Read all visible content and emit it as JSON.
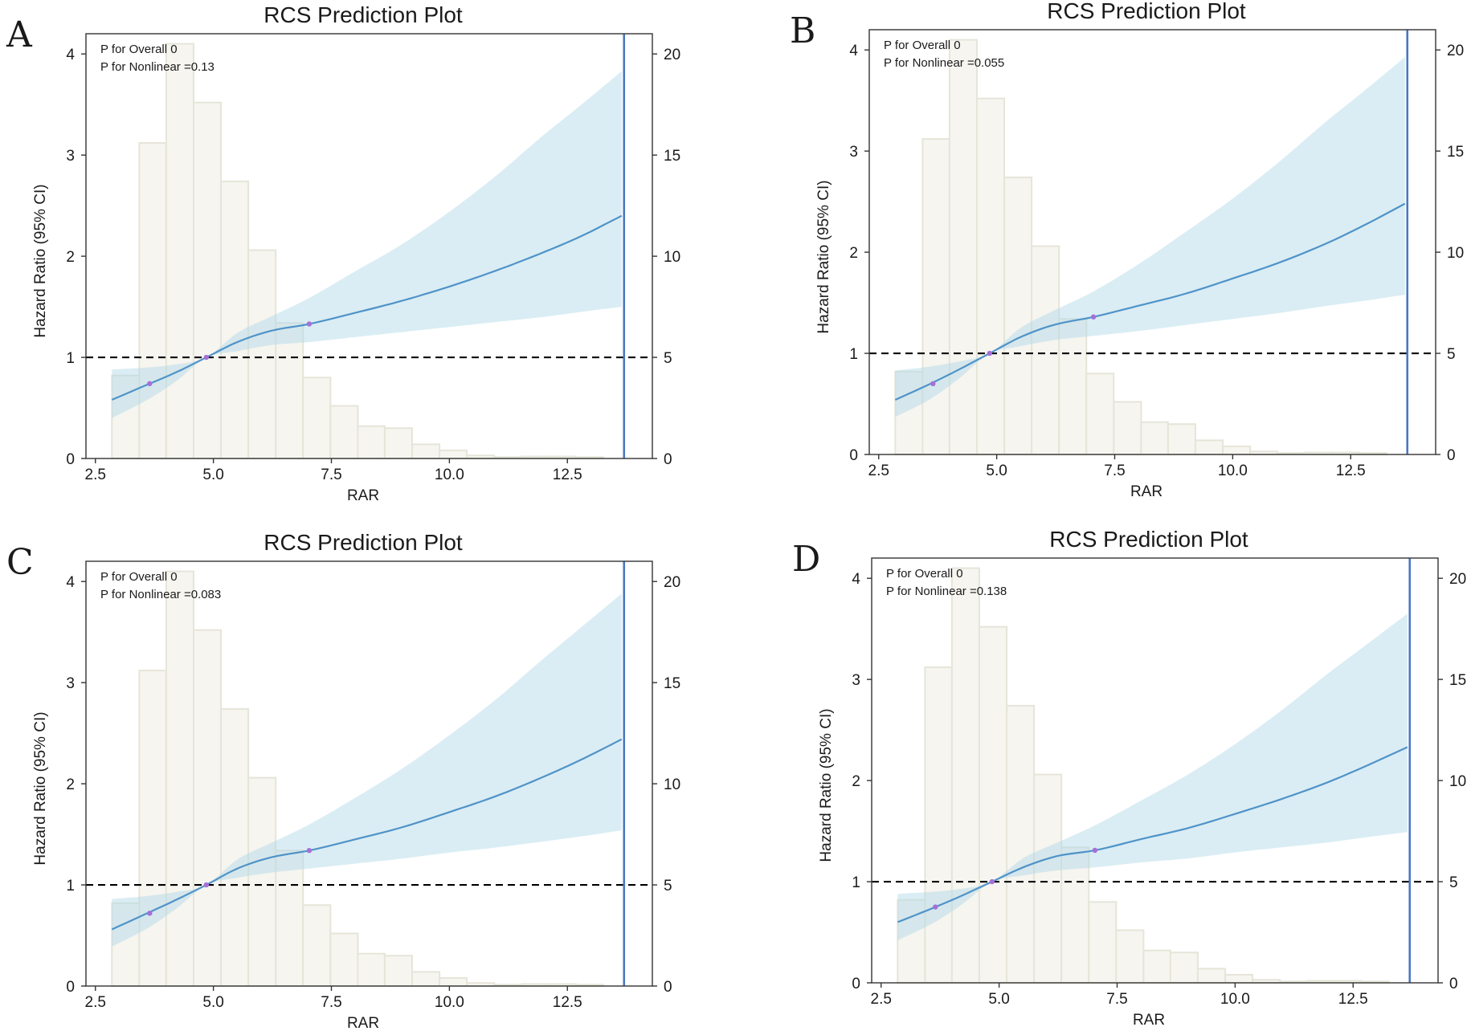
{
  "figure": {
    "colors": {
      "hist_fill": "#f6f5f0",
      "hist_stroke": "#e6e5d9",
      "ci_fill": "#add8e6",
      "curve": "#4f93c8",
      "knot": "#a66fd8",
      "ref_line": "#000000",
      "cutoff_line": "#4a78c2",
      "axis": "#333333"
    }
  },
  "chart_data": [
    {
      "panel_label": "A",
      "type": "line",
      "title": "RCS Prediction Plot",
      "xlabel": "RAR",
      "ylabel": "Hazard Ratio (95% CI)",
      "xlim": [
        2.3,
        14.3
      ],
      "ylim": [
        0,
        4.2
      ],
      "y2lim": [
        0,
        21
      ],
      "xticks": [
        2.5,
        5.0,
        7.5,
        10.0,
        12.5
      ],
      "xtick_labels": [
        "2.5",
        "5.0",
        "7.5",
        "10.0",
        "12.5"
      ],
      "yticks": [
        0,
        1,
        2,
        3,
        4
      ],
      "ytick_labels": [
        "0",
        "1",
        "2",
        "3",
        "4"
      ],
      "y2ticks": [
        0,
        5,
        10,
        15,
        20
      ],
      "y2tick_labels": [
        "0",
        "5",
        "10",
        "15",
        "20"
      ],
      "annotations": [
        "P for Overall 0",
        "P for Nonlinear =0.13"
      ],
      "reference_hr": 1,
      "cutoff_x": 13.7,
      "histogram": {
        "bin_edges": [
          2.85,
          3.43,
          4.0,
          4.58,
          5.16,
          5.74,
          6.32,
          6.9,
          7.48,
          8.06,
          8.63,
          9.21,
          9.79,
          10.37,
          10.95,
          11.53,
          12.11,
          12.68,
          13.26
        ],
        "counts": [
          4.1,
          15.6,
          20.5,
          17.6,
          13.7,
          10.3,
          6.7,
          4.0,
          2.6,
          1.6,
          1.5,
          0.7,
          0.4,
          0.15,
          0.07,
          0.1,
          0.1,
          0.07
        ]
      },
      "series": [
        {
          "name": "HR",
          "x": [
            2.85,
            3.6,
            4.2,
            4.85,
            5.5,
            6.2,
            7.03,
            8.0,
            9.0,
            10.0,
            11.0,
            12.0,
            12.8,
            13.65
          ],
          "y": [
            0.58,
            0.73,
            0.85,
            1.0,
            1.15,
            1.26,
            1.33,
            1.44,
            1.56,
            1.7,
            1.86,
            2.04,
            2.2,
            2.4
          ]
        },
        {
          "name": "CI upper",
          "x": [
            2.85,
            3.6,
            4.2,
            4.85,
            5.5,
            6.2,
            7.0,
            8.0,
            9.0,
            10.0,
            11.0,
            12.0,
            12.8,
            13.65
          ],
          "y": [
            0.88,
            0.9,
            0.93,
            1.0,
            1.24,
            1.4,
            1.58,
            1.85,
            2.12,
            2.44,
            2.8,
            3.2,
            3.5,
            3.83
          ]
        },
        {
          "name": "CI lower",
          "x": [
            2.85,
            3.6,
            4.2,
            4.85,
            5.5,
            6.2,
            7.0,
            8.0,
            9.0,
            10.0,
            11.0,
            12.0,
            12.8,
            13.65
          ],
          "y": [
            0.4,
            0.58,
            0.76,
            1.0,
            1.06,
            1.12,
            1.15,
            1.2,
            1.25,
            1.3,
            1.35,
            1.4,
            1.45,
            1.5
          ]
        }
      ],
      "knots": {
        "x": [
          3.65,
          4.85,
          7.03
        ],
        "y": [
          0.74,
          1.0,
          1.33
        ]
      }
    },
    {
      "panel_label": "B",
      "type": "line",
      "title": "RCS Prediction Plot",
      "xlabel": "RAR",
      "ylabel": "Hazard Ratio (95% CI)",
      "xlim": [
        2.3,
        14.3
      ],
      "ylim": [
        0,
        4.2
      ],
      "y2lim": [
        0,
        21
      ],
      "xticks": [
        2.5,
        5.0,
        7.5,
        10.0,
        12.5
      ],
      "xtick_labels": [
        "2.5",
        "5.0",
        "7.5",
        "10.0",
        "12.5"
      ],
      "yticks": [
        0,
        1,
        2,
        3,
        4
      ],
      "ytick_labels": [
        "0",
        "1",
        "2",
        "3",
        "4"
      ],
      "y2ticks": [
        0,
        5,
        10,
        15,
        20
      ],
      "y2tick_labels": [
        "0",
        "5",
        "10",
        "15",
        "20"
      ],
      "annotations": [
        "P for Overall 0",
        "P for Nonlinear =0.055"
      ],
      "reference_hr": 1,
      "cutoff_x": 13.7,
      "histogram": {
        "bin_edges": [
          2.85,
          3.43,
          4.0,
          4.58,
          5.16,
          5.74,
          6.32,
          6.9,
          7.48,
          8.06,
          8.63,
          9.21,
          9.79,
          10.37,
          10.95,
          11.53,
          12.11,
          12.68,
          13.26
        ],
        "counts": [
          4.1,
          15.6,
          20.5,
          17.6,
          13.7,
          10.3,
          6.7,
          4.0,
          2.6,
          1.6,
          1.5,
          0.7,
          0.4,
          0.15,
          0.07,
          0.1,
          0.1,
          0.07
        ]
      },
      "series": [
        {
          "name": "HR",
          "x": [
            2.85,
            3.6,
            4.2,
            4.85,
            5.5,
            6.2,
            7.05,
            8.0,
            9.0,
            10.0,
            11.0,
            12.0,
            12.8,
            13.65
          ],
          "y": [
            0.54,
            0.7,
            0.84,
            1.0,
            1.16,
            1.28,
            1.36,
            1.47,
            1.59,
            1.74,
            1.9,
            2.09,
            2.27,
            2.48
          ]
        },
        {
          "name": "CI upper",
          "x": [
            2.85,
            3.6,
            4.2,
            4.85,
            5.5,
            6.2,
            7.0,
            8.0,
            9.0,
            10.0,
            11.0,
            12.0,
            12.8,
            13.65
          ],
          "y": [
            0.83,
            0.87,
            0.92,
            1.0,
            1.25,
            1.42,
            1.6,
            1.88,
            2.2,
            2.53,
            2.9,
            3.3,
            3.6,
            3.93
          ]
        },
        {
          "name": "CI lower",
          "x": [
            2.85,
            3.6,
            4.2,
            4.85,
            5.5,
            6.2,
            7.0,
            8.0,
            9.0,
            10.0,
            11.0,
            12.0,
            12.8,
            13.65
          ],
          "y": [
            0.37,
            0.55,
            0.75,
            1.0,
            1.07,
            1.13,
            1.17,
            1.22,
            1.28,
            1.34,
            1.4,
            1.47,
            1.52,
            1.58
          ]
        }
      ],
      "knots": {
        "x": [
          3.65,
          4.85,
          7.05
        ],
        "y": [
          0.7,
          1.0,
          1.36
        ]
      }
    },
    {
      "panel_label": "C",
      "type": "line",
      "title": "RCS Prediction Plot",
      "xlabel": "RAR",
      "ylabel": "Hazard Ratio (95% CI)",
      "xlim": [
        2.3,
        14.3
      ],
      "ylim": [
        0,
        4.2
      ],
      "y2lim": [
        0,
        21
      ],
      "xticks": [
        2.5,
        5.0,
        7.5,
        10.0,
        12.5
      ],
      "xtick_labels": [
        "2.5",
        "5.0",
        "7.5",
        "10.0",
        "12.5"
      ],
      "yticks": [
        0,
        1,
        2,
        3,
        4
      ],
      "ytick_labels": [
        "0",
        "1",
        "2",
        "3",
        "4"
      ],
      "y2ticks": [
        0,
        5,
        10,
        15,
        20
      ],
      "y2tick_labels": [
        "0",
        "5",
        "10",
        "15",
        "20"
      ],
      "annotations": [
        "P for Overall 0",
        "P for Nonlinear =0.083"
      ],
      "reference_hr": 1,
      "cutoff_x": 13.7,
      "histogram": {
        "bin_edges": [
          2.85,
          3.43,
          4.0,
          4.58,
          5.16,
          5.74,
          6.32,
          6.9,
          7.48,
          8.06,
          8.63,
          9.21,
          9.79,
          10.37,
          10.95,
          11.53,
          12.11,
          12.68,
          13.26
        ],
        "counts": [
          4.1,
          15.6,
          20.5,
          17.6,
          13.7,
          10.3,
          6.7,
          4.0,
          2.6,
          1.6,
          1.5,
          0.7,
          0.4,
          0.15,
          0.07,
          0.1,
          0.1,
          0.07
        ]
      },
      "series": [
        {
          "name": "HR",
          "x": [
            2.85,
            3.6,
            4.2,
            4.85,
            5.5,
            6.2,
            7.03,
            8.0,
            9.0,
            10.0,
            11.0,
            12.0,
            12.8,
            13.65
          ],
          "y": [
            0.56,
            0.72,
            0.85,
            1.0,
            1.16,
            1.27,
            1.34,
            1.45,
            1.57,
            1.72,
            1.88,
            2.07,
            2.24,
            2.44
          ]
        },
        {
          "name": "CI upper",
          "x": [
            2.85,
            3.6,
            4.2,
            4.85,
            5.5,
            6.2,
            7.0,
            8.0,
            9.0,
            10.0,
            11.0,
            12.0,
            12.8,
            13.65
          ],
          "y": [
            0.86,
            0.89,
            0.93,
            1.0,
            1.25,
            1.41,
            1.59,
            1.86,
            2.15,
            2.48,
            2.84,
            3.24,
            3.55,
            3.88
          ]
        },
        {
          "name": "CI lower",
          "x": [
            2.85,
            3.6,
            4.2,
            4.85,
            5.5,
            6.2,
            7.0,
            8.0,
            9.0,
            10.0,
            11.0,
            12.0,
            12.8,
            13.65
          ],
          "y": [
            0.39,
            0.57,
            0.76,
            1.0,
            1.07,
            1.12,
            1.16,
            1.21,
            1.26,
            1.32,
            1.37,
            1.43,
            1.48,
            1.54
          ]
        }
      ],
      "knots": {
        "x": [
          3.65,
          4.85,
          7.03
        ],
        "y": [
          0.72,
          1.0,
          1.34
        ]
      }
    },
    {
      "panel_label": "D",
      "type": "line",
      "title": "RCS Prediction Plot",
      "xlabel": "RAR",
      "ylabel": "Hazard Ratio (95% CI)",
      "xlim": [
        2.3,
        14.3
      ],
      "ylim": [
        0,
        4.2
      ],
      "y2lim": [
        0,
        21
      ],
      "xticks": [
        2.5,
        5.0,
        7.5,
        10.0,
        12.5
      ],
      "xtick_labels": [
        "2.5",
        "5.0",
        "7.5",
        "10.0",
        "12.5"
      ],
      "yticks": [
        0,
        1,
        2,
        3,
        4
      ],
      "ytick_labels": [
        "0",
        "1",
        "2",
        "3",
        "4"
      ],
      "y2ticks": [
        0,
        5,
        10,
        15,
        20
      ],
      "y2tick_labels": [
        "0",
        "5",
        "10",
        "15",
        "20"
      ],
      "annotations": [
        "P for Overall 0",
        "P for Nonlinear =0.138"
      ],
      "reference_hr": 1,
      "cutoff_x": 13.7,
      "histogram": {
        "bin_edges": [
          2.85,
          3.43,
          4.0,
          4.58,
          5.16,
          5.74,
          6.32,
          6.9,
          7.48,
          8.06,
          8.63,
          9.21,
          9.79,
          10.37,
          10.95,
          11.53,
          12.11,
          12.68,
          13.26
        ],
        "counts": [
          4.1,
          15.6,
          20.5,
          17.6,
          13.7,
          10.3,
          6.7,
          4.0,
          2.6,
          1.6,
          1.5,
          0.7,
          0.4,
          0.15,
          0.07,
          0.1,
          0.1,
          0.07
        ]
      },
      "series": [
        {
          "name": "HR",
          "x": [
            2.85,
            3.6,
            4.2,
            4.85,
            5.5,
            6.2,
            7.03,
            8.0,
            9.0,
            10.0,
            11.0,
            12.0,
            12.8,
            13.65
          ],
          "y": [
            0.6,
            0.74,
            0.86,
            1.0,
            1.14,
            1.25,
            1.31,
            1.42,
            1.53,
            1.67,
            1.82,
            1.99,
            2.15,
            2.33
          ]
        },
        {
          "name": "CI upper",
          "x": [
            2.85,
            3.6,
            4.2,
            4.85,
            5.5,
            6.2,
            7.0,
            8.0,
            9.0,
            10.0,
            11.0,
            12.0,
            12.8,
            13.65
          ],
          "y": [
            0.88,
            0.9,
            0.93,
            1.0,
            1.23,
            1.38,
            1.55,
            1.8,
            2.06,
            2.36,
            2.7,
            3.07,
            3.35,
            3.65
          ]
        },
        {
          "name": "CI lower",
          "x": [
            2.85,
            3.6,
            4.2,
            4.85,
            5.5,
            6.2,
            7.0,
            8.0,
            9.0,
            10.0,
            11.0,
            12.0,
            12.8,
            13.65
          ],
          "y": [
            0.42,
            0.59,
            0.77,
            1.0,
            1.06,
            1.11,
            1.14,
            1.19,
            1.23,
            1.29,
            1.34,
            1.39,
            1.44,
            1.49
          ]
        }
      ],
      "knots": {
        "x": [
          3.65,
          4.85,
          7.03
        ],
        "y": [
          0.75,
          1.0,
          1.31
        ]
      }
    }
  ]
}
